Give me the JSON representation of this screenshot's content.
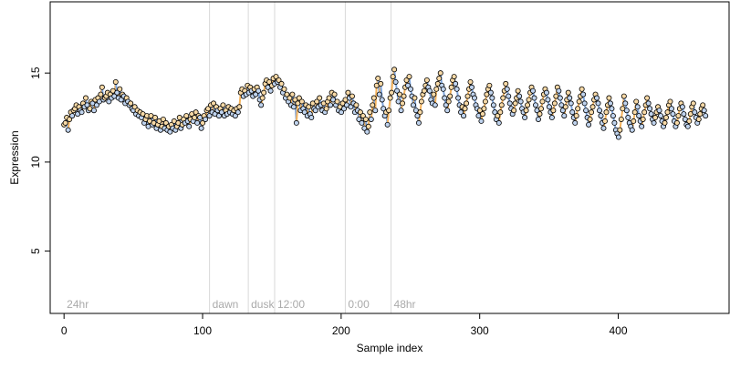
{
  "chart_data": {
    "type": "scatter",
    "title": "",
    "xlabel": "Sample index",
    "ylabel": "Expression",
    "xlim": [
      -10,
      480
    ],
    "ylim": [
      1.5,
      19
    ],
    "xticks": [
      0,
      100,
      200,
      300,
      400
    ],
    "yticks": [
      5,
      10,
      15
    ],
    "grid": false,
    "legend": "none",
    "colors": {
      "points_fill": "#bfd3ee",
      "points_stroke": "#000000",
      "up_segment": "#f5b35c",
      "down_segment": "#7fa6dd",
      "marker_lines": "#d9d9d9",
      "marker_text": "#aaaaaa"
    },
    "markers": [
      {
        "label": "24hr",
        "x": 0,
        "show_line": false
      },
      {
        "label": "dawn",
        "x": 105,
        "show_line": true
      },
      {
        "label": "dusk",
        "x": 133,
        "show_line": true
      },
      {
        "label": "12:00",
        "x": 152,
        "show_line": true
      },
      {
        "label": "0:00",
        "x": 203,
        "show_line": true
      },
      {
        "label": "48hr",
        "x": 236,
        "show_line": true
      }
    ],
    "x_range": [
      0,
      463
    ],
    "series": [
      {
        "values": [
          12.1,
          12.2,
          12.5,
          11.8,
          12.4,
          12.8,
          12.6,
          12.9,
          13.0,
          13.2,
          12.7,
          13.1,
          12.9,
          12.8,
          13.3,
          13.1,
          13.6,
          13.2,
          12.9,
          13.0,
          13.4,
          13.3,
          12.9,
          13.5,
          13.2,
          13.6,
          13.4,
          13.8,
          14.2,
          13.5,
          13.6,
          13.7,
          13.9,
          13.4,
          13.8,
          13.6,
          14.0,
          13.7,
          14.5,
          13.9,
          13.6,
          14.1,
          13.5,
          13.8,
          13.7,
          13.3,
          13.6,
          13.4,
          13.2,
          13.3,
          13.0,
          12.9,
          13.1,
          12.7,
          12.9,
          12.6,
          12.8,
          12.5,
          12.7,
          12.2,
          12.4,
          12.6,
          12.0,
          12.3,
          12.6,
          12.1,
          12.2,
          12.5,
          11.9,
          12.1,
          12.3,
          11.8,
          12.0,
          12.4,
          11.9,
          12.2,
          11.8,
          12.0,
          11.7,
          12.1,
          11.9,
          12.3,
          11.8,
          12.0,
          12.2,
          12.5,
          11.9,
          12.1,
          12.4,
          12.2,
          12.6,
          12.3,
          12.0,
          12.4,
          12.7,
          12.3,
          12.5,
          12.8,
          12.2,
          12.6,
          12.5,
          11.9,
          12.2,
          12.6,
          12.4,
          12.9,
          13.0,
          12.6,
          13.2,
          12.8,
          13.3,
          12.7,
          13.1,
          12.9,
          12.6,
          13.0,
          12.8,
          13.2,
          12.6,
          12.9,
          12.7,
          13.1,
          12.8,
          13.0,
          12.7,
          12.9,
          12.6,
          13.0,
          12.8,
          13.1,
          13.9,
          14.1,
          13.7,
          14.0,
          13.8,
          14.3,
          13.9,
          14.2,
          14.0,
          13.7,
          14.1,
          13.8,
          14.2,
          14.0,
          13.5,
          13.2,
          13.6,
          13.9,
          14.4,
          14.6,
          14.2,
          14.5,
          14.0,
          14.3,
          14.7,
          14.4,
          14.8,
          14.5,
          14.6,
          14.2,
          14.4,
          13.9,
          14.1,
          13.6,
          13.8,
          13.4,
          13.6,
          13.2,
          13.8,
          13.1,
          13.5,
          12.2,
          13.3,
          13.6,
          12.9,
          13.4,
          13.0,
          12.8,
          13.2,
          12.6,
          13.1,
          12.7,
          12.5,
          13.3,
          13.0,
          12.9,
          13.4,
          13.1,
          13.6,
          13.2,
          12.9,
          13.3,
          12.8,
          13.0,
          13.4,
          13.6,
          13.2,
          13.9,
          13.5,
          13.8,
          13.2,
          13.4,
          12.9,
          13.1,
          12.8,
          13.3,
          13.0,
          13.5,
          13.2,
          13.9,
          13.6,
          13.1,
          13.7,
          13.3,
          12.8,
          13.2,
          12.9,
          12.4,
          12.8,
          12.2,
          12.6,
          11.9,
          12.4,
          11.7,
          12.0,
          12.8,
          12.4,
          13.2,
          13.6,
          12.9,
          14.3,
          14.7,
          13.8,
          14.4,
          13.5,
          13.0,
          12.6,
          12.8,
          12.1,
          12.9,
          13.6,
          13.9,
          14.8,
          15.2,
          14.5,
          14.0,
          13.4,
          13.8,
          12.9,
          13.3,
          13.7,
          14.2,
          14.6,
          14.3,
          14.8,
          14.1,
          13.7,
          13.2,
          13.6,
          12.9,
          12.6,
          12.2,
          12.8,
          13.4,
          13.8,
          14.0,
          14.3,
          14.6,
          14.2,
          14.0,
          13.5,
          13.3,
          13.8,
          13.2,
          14.1,
          14.4,
          14.7,
          15.0,
          14.3,
          14.1,
          13.6,
          13.2,
          12.9,
          13.4,
          13.7,
          14.2,
          14.6,
          14.8,
          14.4,
          14.1,
          13.6,
          13.2,
          12.8,
          13.1,
          12.6,
          13.0,
          13.3,
          13.7,
          14.1,
          14.5,
          14.2,
          13.8,
          13.6,
          13.2,
          13.0,
          12.6,
          12.9,
          12.3,
          12.7,
          13.0,
          13.4,
          13.8,
          14.1,
          14.3,
          13.9,
          13.6,
          13.2,
          12.8,
          12.4,
          12.6,
          12.2,
          12.8,
          13.2,
          13.6,
          14.0,
          14.4,
          14.1,
          13.7,
          13.3,
          13.0,
          12.7,
          12.9,
          13.3,
          13.6,
          14.0,
          13.7,
          13.4,
          13.0,
          12.8,
          12.5,
          12.9,
          13.2,
          13.5,
          13.9,
          14.2,
          14.0,
          13.6,
          13.2,
          12.9,
          12.4,
          12.7,
          13.0,
          13.4,
          13.8,
          14.1,
          13.9,
          13.5,
          13.1,
          12.8,
          12.5,
          12.9,
          13.3,
          13.7,
          14.2,
          14.0,
          13.6,
          13.2,
          12.9,
          12.6,
          13.1,
          13.5,
          13.9,
          13.6,
          13.3,
          12.8,
          12.5,
          12.2,
          12.6,
          13.0,
          13.4,
          13.7,
          14.1,
          13.8,
          13.3,
          12.9,
          12.5,
          12.1,
          12.4,
          12.8,
          13.1,
          13.5,
          13.8,
          13.6,
          13.3,
          12.9,
          12.6,
          12.2,
          11.9,
          12.3,
          12.8,
          13.2,
          13.6,
          13.3,
          13.0,
          12.6,
          12.2,
          11.8,
          11.6,
          11.4,
          11.8,
          12.4,
          13.0,
          13.7,
          13.3,
          12.9,
          12.5,
          12.2,
          12.0,
          11.8,
          12.3,
          12.8,
          13.4,
          13.1,
          12.6,
          12.3,
          12.0,
          12.4,
          12.8,
          13.2,
          13.6,
          13.3,
          13.0,
          12.7,
          12.4,
          12.2,
          12.5,
          12.8,
          13.1,
          12.9,
          12.6,
          12.3,
          12.0,
          12.2,
          12.5,
          12.8,
          13.2,
          13.4,
          13.0,
          12.7,
          12.3,
          12.0,
          12.2,
          12.6,
          13.0,
          13.3,
          13.1,
          12.7,
          12.4,
          12.1,
          12.0,
          12.3,
          12.7,
          13.1,
          13.3,
          12.8,
          12.5,
          12.2,
          12.4,
          12.7,
          13.0,
          13.2,
          12.9,
          12.6
        ]
      }
    ]
  }
}
